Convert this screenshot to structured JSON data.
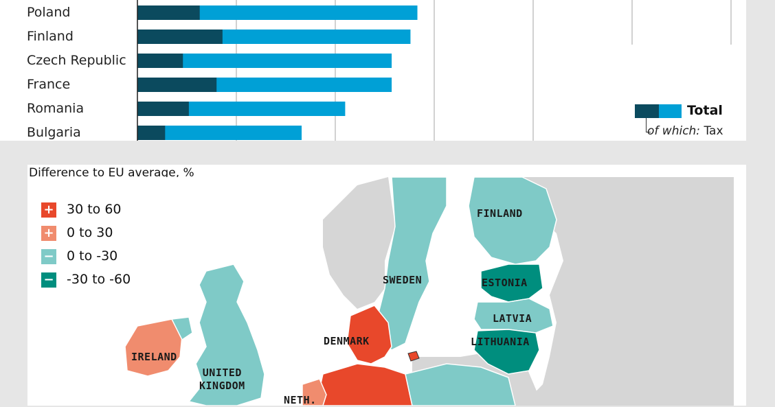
{
  "chart_data": [
    {
      "type": "bar",
      "stacked": true,
      "categories": [
        "Poland",
        "Finland",
        "Czech Republic",
        "France",
        "Romania",
        "Bulgaria"
      ],
      "series": [
        {
          "name": "of which: Tax",
          "color": "#0b4a5e",
          "values": [
            0.63,
            0.86,
            0.46,
            0.8,
            0.52,
            0.28
          ]
        },
        {
          "name": "Total",
          "color": "#00a0d6",
          "values": [
            2.83,
            2.76,
            2.57,
            2.57,
            2.1,
            1.66
          ]
        }
      ],
      "grid": true,
      "legend_placement": "bottom-right"
    },
    {
      "type": "map",
      "title": "Difference to EU average, %",
      "legend": [
        {
          "symbol": "+",
          "label": "30 to 60",
          "color": "#e8482b"
        },
        {
          "symbol": "+",
          "label": "0 to 30",
          "color": "#f08c6e"
        },
        {
          "symbol": "−",
          "label": "0 to -30",
          "color": "#7fcac7"
        },
        {
          "symbol": "−",
          "label": "-30 to -60",
          "color": "#008e7e"
        }
      ],
      "countries": [
        {
          "name": "FINLAND",
          "category": "0 to -30"
        },
        {
          "name": "SWEDEN",
          "category": "0 to -30"
        },
        {
          "name": "ESTONIA",
          "category": "-30 to -60"
        },
        {
          "name": "LATVIA",
          "category": "0 to -30"
        },
        {
          "name": "LITHUANIA",
          "category": "-30 to -60"
        },
        {
          "name": "DENMARK",
          "category": "30 to 60"
        },
        {
          "name": "IRELAND",
          "category": "0 to 30"
        },
        {
          "name": "UNITED KINGDOM",
          "category": "0 to -30"
        },
        {
          "name": "NETH.",
          "category": "0 to 30"
        }
      ]
    }
  ],
  "legend": {
    "total_label": "Total",
    "sub_prefix": "of which:",
    "sub_label": "Tax"
  }
}
